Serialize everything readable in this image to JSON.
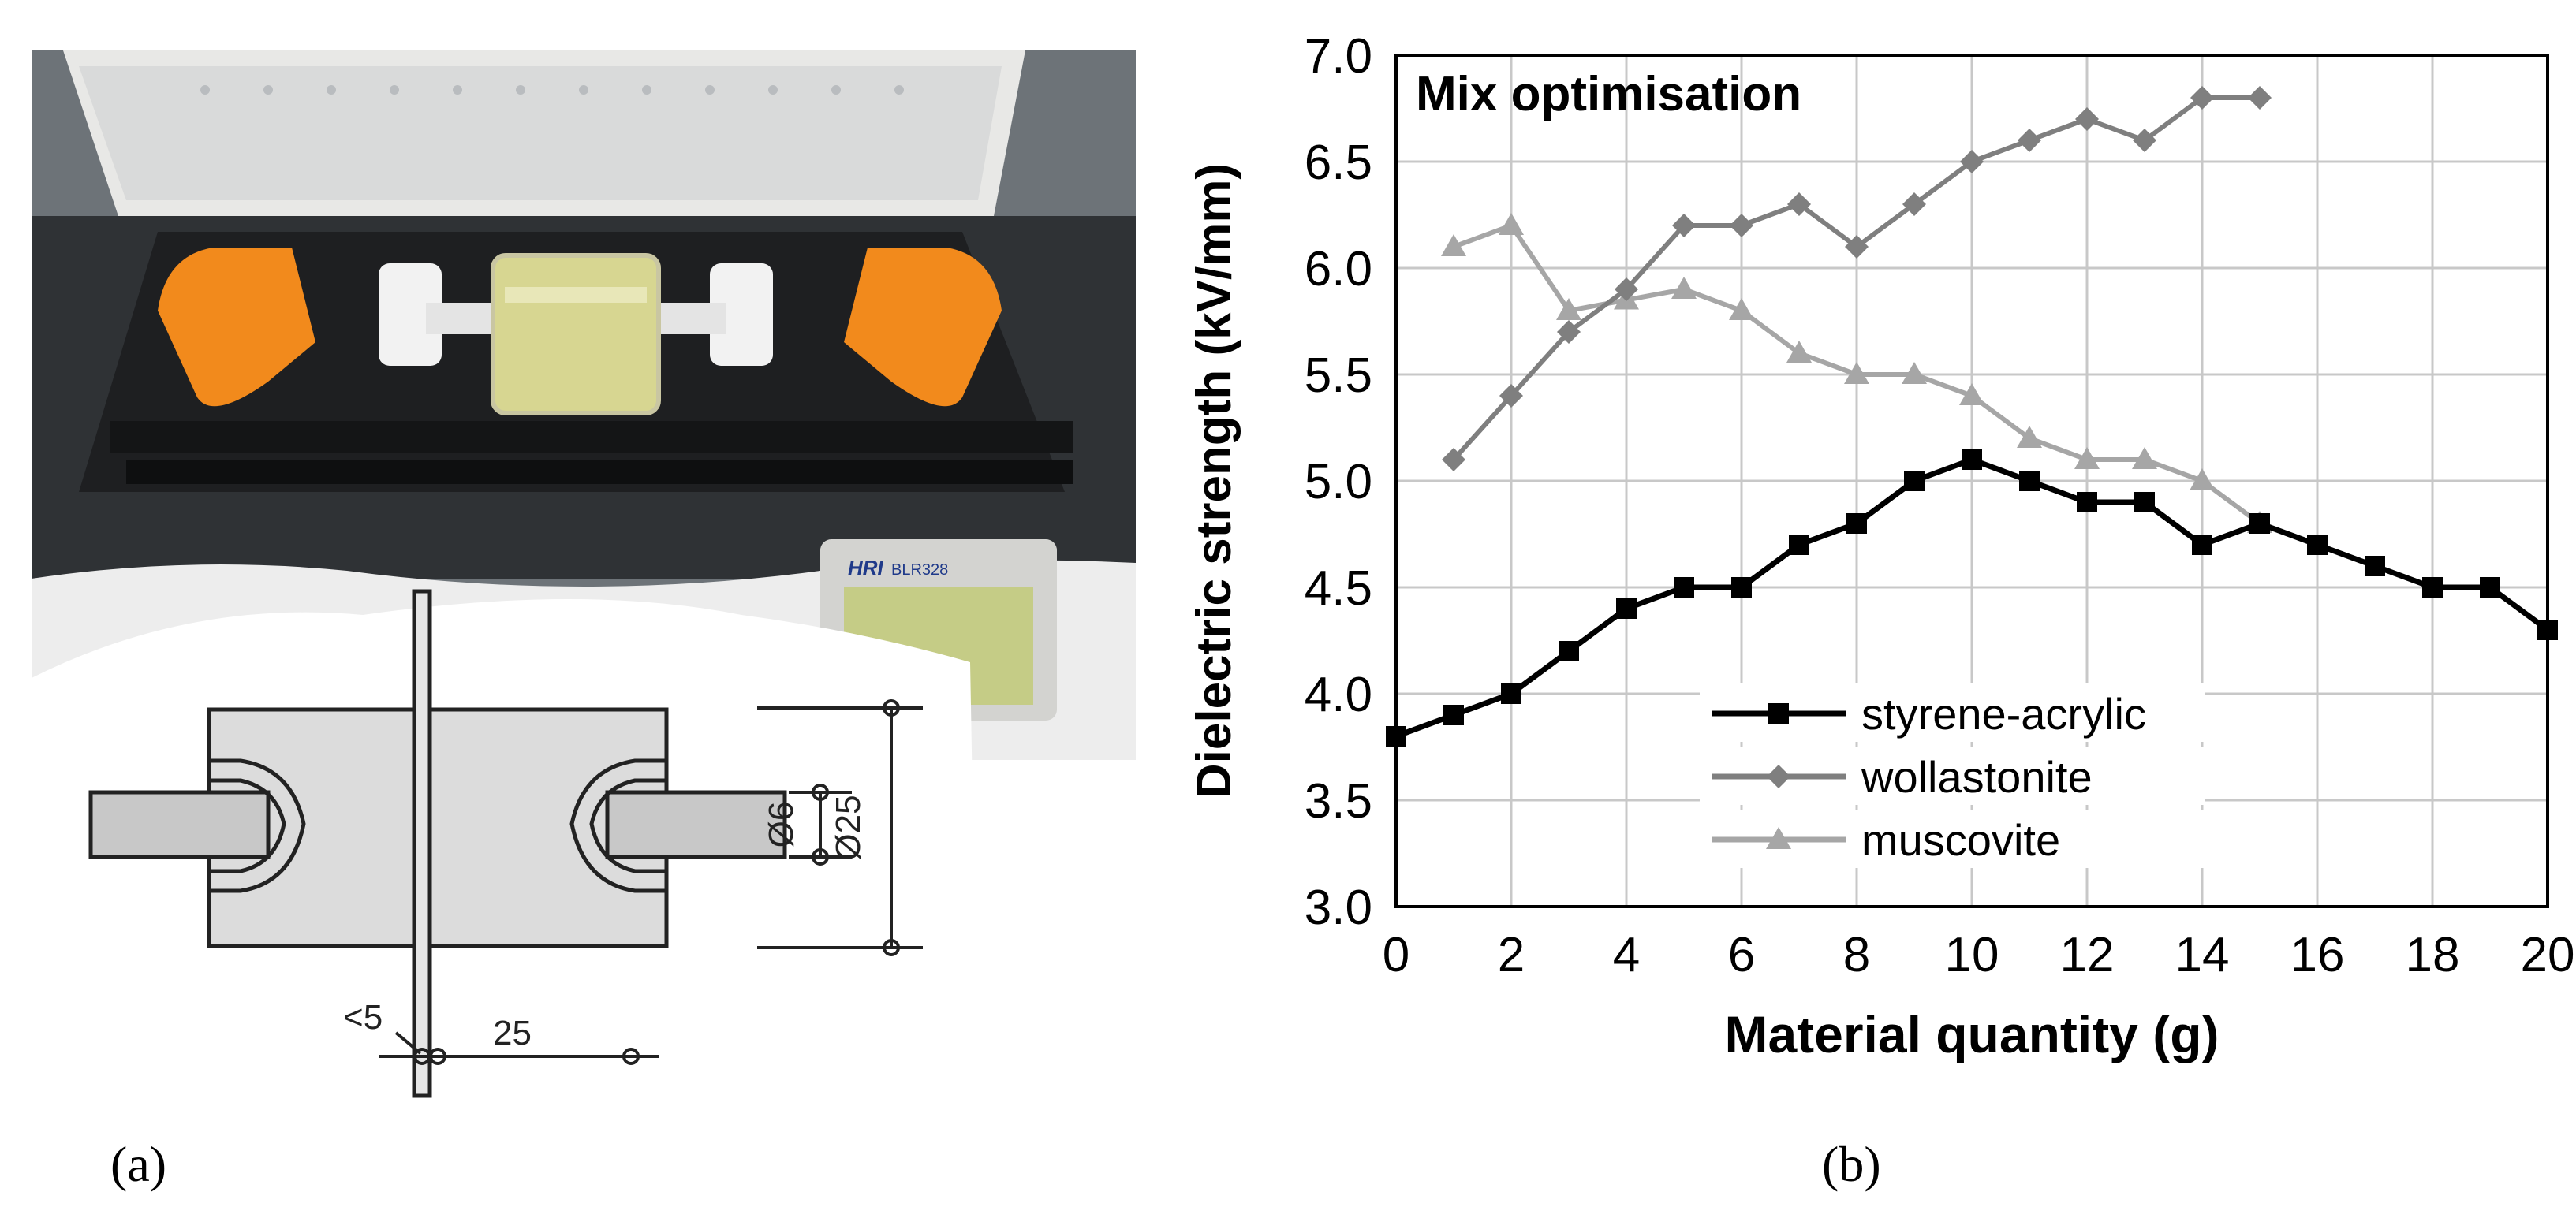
{
  "panels": {
    "left_label": "(a)",
    "right_label": "(b)"
  },
  "photo": {
    "device_brand": "HRI",
    "device_model": "BLR328"
  },
  "diagram": {
    "gap_label": "<5",
    "electrode_spacing": "25",
    "inner_diameter": "Ø6",
    "outer_diameter": "Ø25"
  },
  "colors": {
    "styrene_acrylic": "#000000",
    "wollastonite": "#7f7f7f",
    "muscovite": "#a6a6a6",
    "photo_background": "#3c3f42",
    "orange_arm": "#f28a1c",
    "oil": "#d7d691"
  },
  "chart_data": {
    "type": "line",
    "title": "Mix optimisation",
    "xlabel": "Material quantity (g)",
    "ylabel": "Dielectric strength (kV/mm)",
    "xlim": [
      0,
      20
    ],
    "ylim": [
      3.0,
      7.0
    ],
    "xticks": [
      "0",
      "2",
      "4",
      "6",
      "8",
      "10",
      "12",
      "14",
      "16",
      "18",
      "20"
    ],
    "yticks": [
      "3.0",
      "3.5",
      "4.0",
      "4.5",
      "5.0",
      "5.5",
      "6.0",
      "6.5",
      "7.0"
    ],
    "grid": true,
    "legend_position": "bottom-center",
    "series": [
      {
        "name": "styrene-acrylic",
        "marker": "square",
        "color": "#000000",
        "x": [
          0,
          1,
          2,
          3,
          4,
          5,
          6,
          7,
          8,
          9,
          10,
          11,
          12,
          13,
          14,
          15,
          16,
          17,
          18,
          19,
          20
        ],
        "y": [
          3.8,
          3.9,
          4.0,
          4.2,
          4.4,
          4.5,
          4.5,
          4.7,
          4.8,
          5.0,
          5.1,
          5.0,
          4.9,
          4.9,
          4.7,
          4.8,
          4.7,
          4.6,
          4.5,
          4.5,
          4.3
        ]
      },
      {
        "name": "wollastonite",
        "marker": "diamond",
        "color": "#7f7f7f",
        "x": [
          1,
          2,
          3,
          4,
          5,
          6,
          7,
          8,
          9,
          10,
          11,
          12,
          13,
          14,
          15
        ],
        "y": [
          5.1,
          5.4,
          5.7,
          5.9,
          6.2,
          6.2,
          6.3,
          6.1,
          6.3,
          6.5,
          6.6,
          6.7,
          6.6,
          6.8,
          6.8
        ]
      },
      {
        "name": "muscovite",
        "marker": "triangle",
        "color": "#a6a6a6",
        "x": [
          1,
          2,
          3,
          4,
          5,
          6,
          7,
          8,
          9,
          10,
          11,
          12,
          13,
          14,
          15
        ],
        "y": [
          6.1,
          6.2,
          5.8,
          5.85,
          5.9,
          5.8,
          5.6,
          5.5,
          5.5,
          5.4,
          5.2,
          5.1,
          5.1,
          5.0,
          4.8
        ]
      }
    ]
  }
}
